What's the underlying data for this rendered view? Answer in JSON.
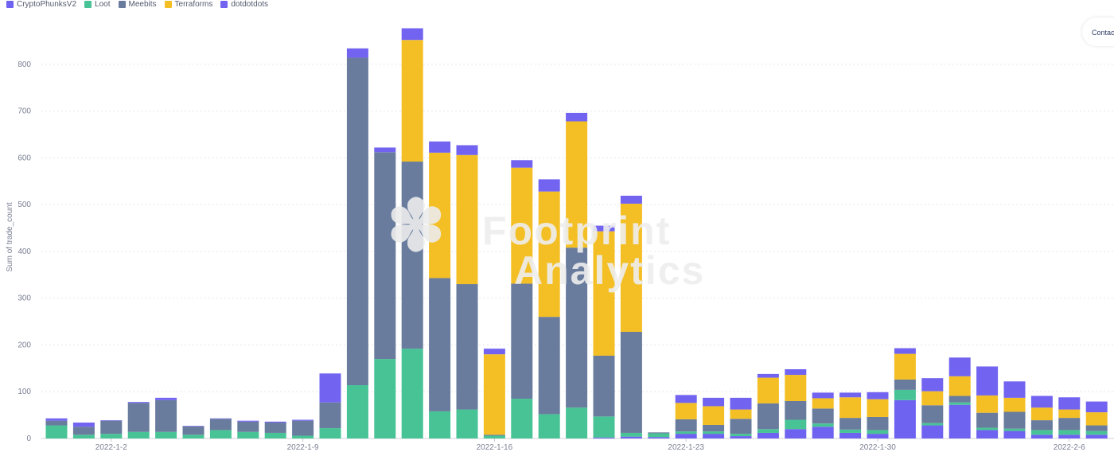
{
  "legend": {
    "items": [
      {
        "label": "CryptoPhunksV2",
        "color": "#6e62f0"
      },
      {
        "label": "Loot",
        "color": "#48c396"
      },
      {
        "label": "Meebits",
        "color": "#697c9e"
      },
      {
        "label": "Terraforms",
        "color": "#f4bf25"
      },
      {
        "label": "dotdotdots",
        "color": "#7264f0"
      }
    ]
  },
  "contact_label": "Contac",
  "watermark": {
    "line1": "Footprint",
    "line2": "Analytics",
    "mark": "✽"
  },
  "chart_data": {
    "type": "bar",
    "stacked": true,
    "ylabel": "Sum of trade_count",
    "ylim": [
      0,
      900
    ],
    "yticks": [
      0,
      100,
      200,
      300,
      400,
      500,
      600,
      700,
      800
    ],
    "grid": true,
    "legend_position": "top-left",
    "x_tick_labels": [
      {
        "label": "2022-1-2",
        "index": 2
      },
      {
        "label": "2022-1-9",
        "index": 9
      },
      {
        "label": "2022-1-16",
        "index": 16
      },
      {
        "label": "2022-1-23",
        "index": 23
      },
      {
        "label": "2022-1-30",
        "index": 30
      },
      {
        "label": "2022-2-6",
        "index": 37
      }
    ],
    "categories": [
      "2021-12-31",
      "2022-1-1",
      "2022-1-2",
      "2022-1-3",
      "2022-1-4",
      "2022-1-5",
      "2022-1-6",
      "2022-1-7",
      "2022-1-8",
      "2022-1-9",
      "2022-1-10",
      "2022-1-11",
      "2022-1-12",
      "2022-1-13",
      "2022-1-14",
      "2022-1-15",
      "2022-1-16",
      "2022-1-17",
      "2022-1-18",
      "2022-1-19",
      "2022-1-20",
      "2022-1-21",
      "2022-1-22",
      "2022-1-23",
      "2022-1-24",
      "2022-1-25",
      "2022-1-26",
      "2022-1-27",
      "2022-1-28",
      "2022-1-29",
      "2022-1-30",
      "2022-1-31",
      "2022-2-1",
      "2022-2-2",
      "2022-2-3",
      "2022-2-4",
      "2022-2-5",
      "2022-2-6",
      "2022-2-7"
    ],
    "series": [
      {
        "name": "CryptoPhunksV2",
        "color": "#6e62f0",
        "values": [
          0,
          0,
          0,
          0,
          0,
          0,
          0,
          0,
          0,
          0,
          0,
          0,
          0,
          0,
          0,
          0,
          0,
          0,
          0,
          0,
          2,
          4,
          3,
          10,
          10,
          5,
          12,
          20,
          25,
          12,
          10,
          82,
          28,
          72,
          18,
          16,
          8,
          8,
          8
        ]
      },
      {
        "name": "Loot",
        "color": "#48c396",
        "values": [
          28,
          8,
          10,
          14,
          14,
          8,
          18,
          14,
          12,
          6,
          22,
          114,
          170,
          192,
          58,
          62,
          6,
          85,
          52,
          66,
          45,
          8,
          8,
          5,
          5,
          5,
          8,
          20,
          7,
          7,
          8,
          22,
          5,
          5,
          5,
          5,
          10,
          10,
          8
        ]
      },
      {
        "name": "Meebits",
        "color": "#697c9e",
        "values": [
          10,
          17,
          28,
          62,
          68,
          18,
          24,
          22,
          22,
          32,
          55,
          700,
          442,
          400,
          285,
          268,
          2,
          246,
          208,
          342,
          130,
          216,
          2,
          26,
          14,
          32,
          55,
          40,
          32,
          25,
          28,
          22,
          38,
          14,
          32,
          36,
          21,
          26,
          12
        ]
      },
      {
        "name": "Terraforms",
        "color": "#f4bf25",
        "values": [
          0,
          0,
          0,
          0,
          0,
          0,
          0,
          0,
          0,
          0,
          0,
          0,
          0,
          260,
          268,
          276,
          172,
          248,
          268,
          270,
          266,
          274,
          0,
          35,
          40,
          20,
          55,
          56,
          22,
          44,
          38,
          55,
          30,
          42,
          37,
          30,
          27,
          18,
          28
        ]
      },
      {
        "name": "dotdotdots",
        "color": "#7264f0",
        "values": [
          5,
          9,
          1,
          2,
          5,
          1,
          1,
          2,
          2,
          2,
          62,
          20,
          10,
          25,
          24,
          21,
          12,
          16,
          26,
          18,
          12,
          17,
          0,
          17,
          18,
          25,
          8,
          12,
          12,
          10,
          15,
          12,
          28,
          40,
          62,
          35,
          25,
          26,
          23
        ]
      }
    ]
  }
}
